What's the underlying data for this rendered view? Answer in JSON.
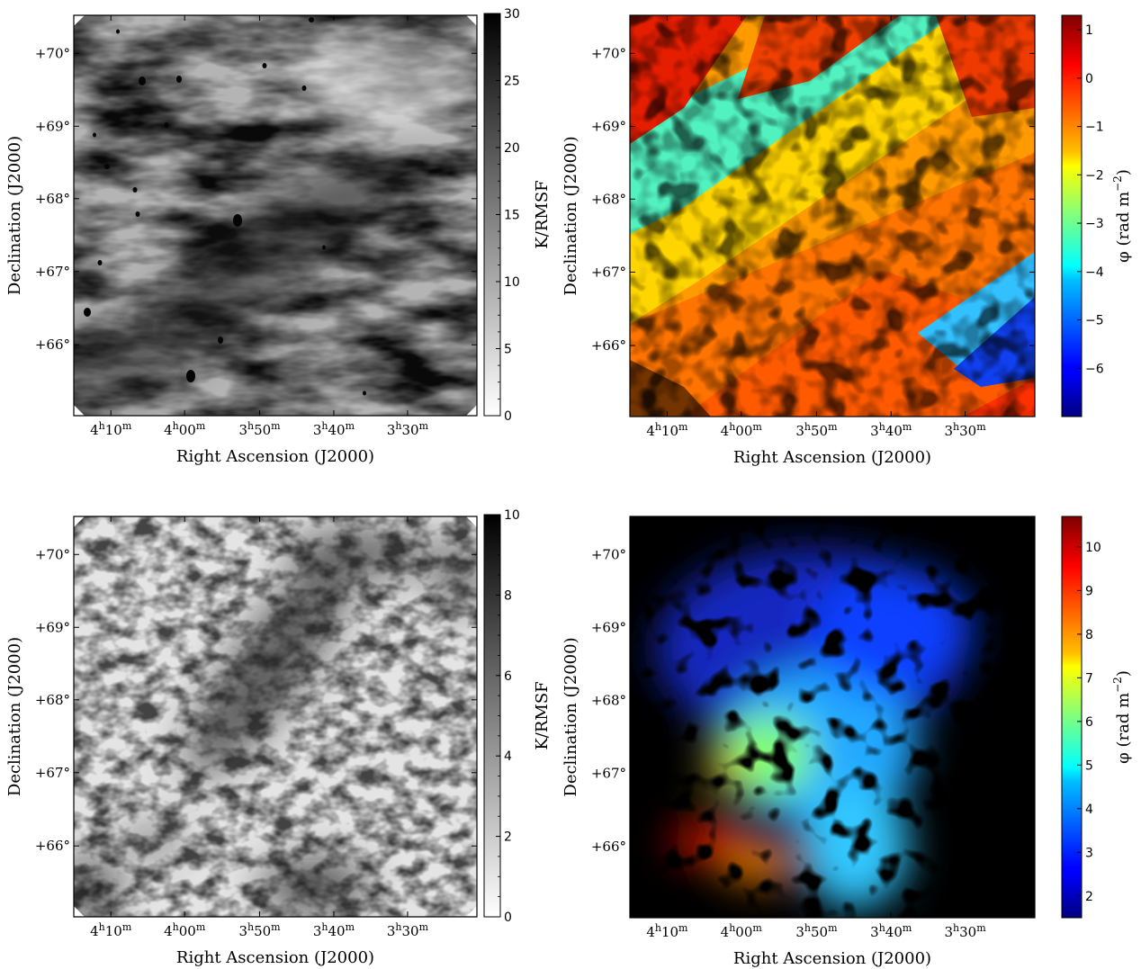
{
  "chart_data": [
    {
      "type": "heatmap",
      "colormap": "gray_r",
      "xlabel": "Right Ascension (J2000)",
      "ylabel": "Declination (J2000)",
      "xticklabels": [
        "4h10m",
        "4h00m",
        "3h50m",
        "3h40m",
        "3h30m"
      ],
      "yticklabels": [
        "+66°",
        "+67°",
        "+68°",
        "+69°",
        "+70°"
      ],
      "colorbar": {
        "label": "K/RMSF",
        "ticks": [
          "0",
          "5",
          "10",
          "15",
          "20",
          "25",
          "30"
        ],
        "range": [
          0,
          30
        ]
      }
    },
    {
      "type": "heatmap",
      "colormap": "jet",
      "xlabel": "Right Ascension (J2000)",
      "ylabel": "Declination (J2000)",
      "xticklabels": [
        "4h10m",
        "4h00m",
        "3h50m",
        "3h40m",
        "3h30m"
      ],
      "yticklabels": [
        "+66°",
        "+67°",
        "+68°",
        "+69°",
        "+70°"
      ],
      "colorbar": {
        "label": "φ (rad m−2)",
        "ticks": [
          "−6",
          "−5",
          "−4",
          "−3",
          "−2",
          "−1",
          "0",
          "1"
        ],
        "range": [
          -7,
          1.3
        ]
      }
    },
    {
      "type": "heatmap",
      "colormap": "gray_r",
      "xlabel": "Right Ascension (J2000)",
      "ylabel": "Declination (J2000)",
      "xticklabels": [
        "4h10m",
        "4h00m",
        "3h50m",
        "3h40m",
        "3h30m"
      ],
      "yticklabels": [
        "+66°",
        "+67°",
        "+68°",
        "+69°",
        "+70°"
      ],
      "colorbar": {
        "label": "K/RMSF",
        "ticks": [
          "0",
          "2",
          "4",
          "6",
          "8",
          "10"
        ],
        "range": [
          0,
          10
        ]
      }
    },
    {
      "type": "heatmap",
      "colormap": "jet",
      "xlabel": "Right Ascension (J2000)",
      "ylabel": "Declination (J2000)",
      "xticklabels": [
        "4h10m",
        "4h00m",
        "3h50m",
        "3h40m",
        "3h30m"
      ],
      "yticklabels": [
        "+66°",
        "+67°",
        "+68°",
        "+69°",
        "+70°"
      ],
      "colorbar": {
        "label": "φ (rad m−2)",
        "ticks": [
          "2",
          "3",
          "4",
          "5",
          "6",
          "7",
          "8",
          "9",
          "10"
        ],
        "range": [
          1.5,
          10.7
        ]
      }
    }
  ]
}
